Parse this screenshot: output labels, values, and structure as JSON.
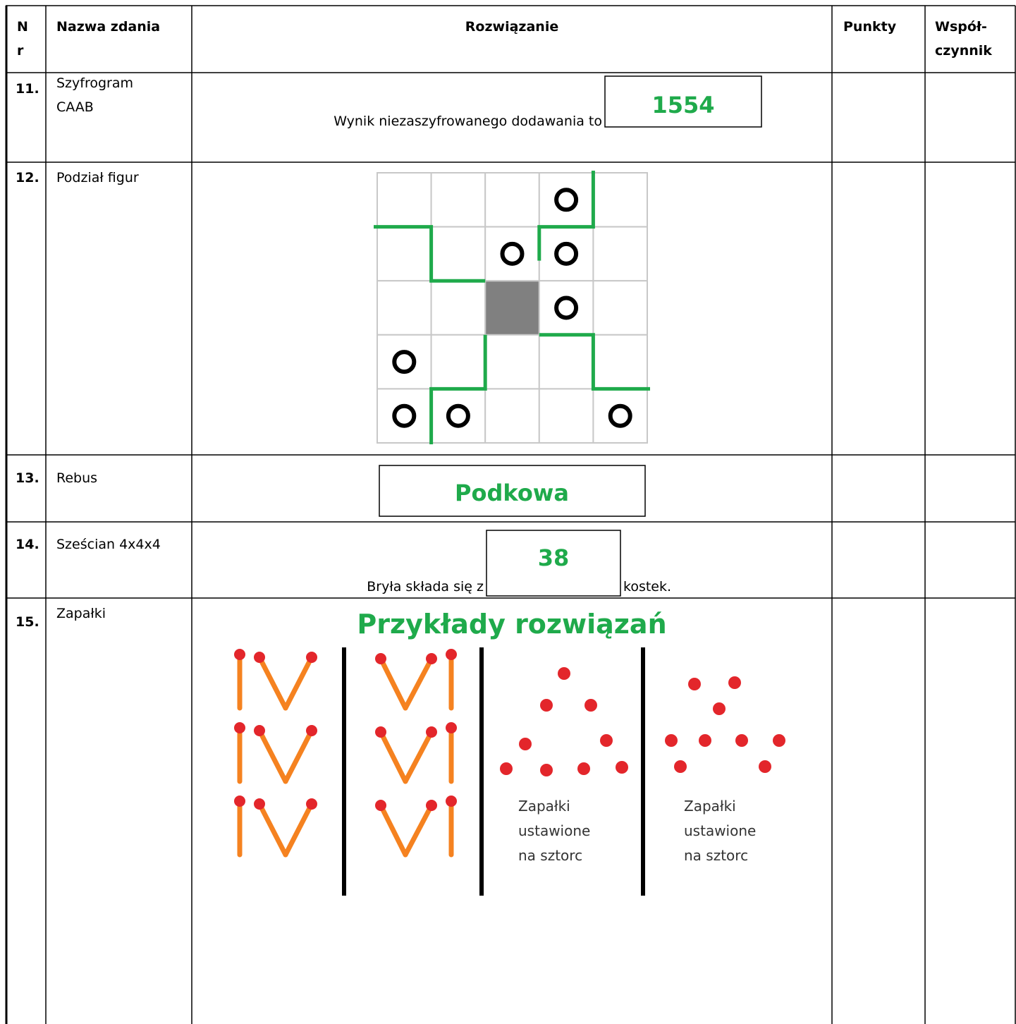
{
  "table": {
    "header": [
      [
        "N",
        "r"
      ],
      [
        "Nazwa zdania"
      ],
      [
        "Rozwiązanie"
      ],
      [
        "Punkty"
      ],
      [
        "Współ-",
        "czynnik"
      ]
    ],
    "rows": [
      {
        "nr": "11.",
        "name": [
          "Szyfrogram",
          "CAAB"
        ],
        "solution": {
          "text": "Wynik niezaszyfrowanego dodawania to",
          "answer": "1554"
        }
      },
      {
        "nr": "12.",
        "name": [
          "Podział figur"
        ]
      },
      {
        "nr": "13.",
        "name": [
          "Rebus"
        ],
        "solution": {
          "answer": "Podkowa"
        }
      },
      {
        "nr": "14.",
        "name": [
          "Sześcian 4x4x4"
        ],
        "solution": {
          "text": "Bryła składa się z",
          "answer": "38",
          "after": "kostek."
        }
      },
      {
        "nr": "15.",
        "name": [
          "Zapałki"
        ],
        "solution": {
          "title": "Przykłady rozwiązań",
          "notes": [
            [
              "Zapałki",
              "ustawione",
              "na sztorc"
            ],
            [
              "Zapałki",
              "ustawione",
              "na sztorc"
            ]
          ]
        }
      }
    ]
  }
}
